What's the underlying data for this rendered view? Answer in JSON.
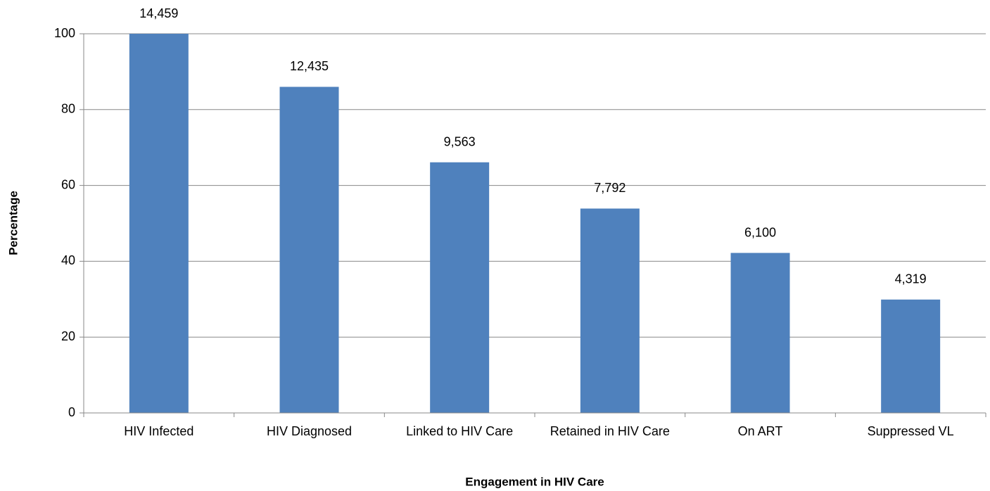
{
  "chart_data": {
    "type": "bar",
    "xlabel": "Engagement in HIV Care",
    "ylabel": "Percentage",
    "categories": [
      "HIV Infected",
      "HIV Diagnosed",
      "Linked to HIV Care",
      "Retained in HIV Care",
      "On ART",
      "Suppressed VL"
    ],
    "values": [
      100,
      86.0,
      66.1,
      53.9,
      42.2,
      29.9
    ],
    "data_labels": [
      {
        "value": 14459,
        "label": "14,459"
      },
      {
        "value": 12435,
        "label": "12,435"
      },
      {
        "value": 9563,
        "label": "9,563"
      },
      {
        "value": 7792,
        "label": "7,792"
      },
      {
        "value": 6100,
        "label": "6,100"
      },
      {
        "value": 4319,
        "label": "4,319"
      }
    ],
    "color": "#4f81bd",
    "ylim": [
      0,
      100
    ],
    "yticks": [
      0,
      20,
      40,
      60,
      80,
      100
    ],
    "grid": true
  }
}
